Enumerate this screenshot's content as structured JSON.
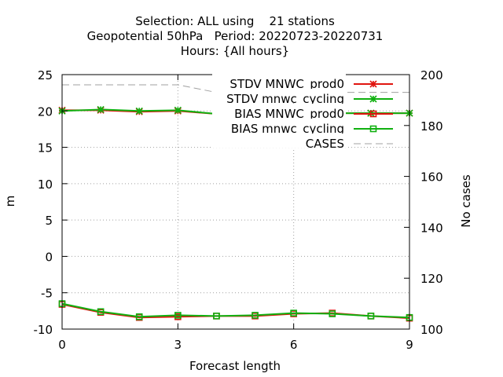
{
  "chart_data": {
    "type": "line",
    "title_lines": [
      "Selection: ALL using    21 stations",
      "Geopotential 50hPa   Period: 20220723-20220731",
      "Hours: {All hours}"
    ],
    "xlabel": "Forecast length",
    "ylabel": "m",
    "y2label": "No cases",
    "xlim": [
      0,
      9
    ],
    "ylim": [
      -10,
      25
    ],
    "y2lim": [
      100,
      200
    ],
    "xticks": [
      "0",
      "3",
      "6",
      "9"
    ],
    "yticks": [
      "-10",
      "-5",
      "0",
      "5",
      "10",
      "15",
      "20",
      "25"
    ],
    "y2ticks": [
      "100",
      "120",
      "140",
      "160",
      "180",
      "200"
    ],
    "grid": true,
    "legend_position": "top-right",
    "series": [
      {
        "name": "STDV MNWC_prod0",
        "color": "#e0150f",
        "marker": "star",
        "axis": "left",
        "x": [
          0,
          1,
          2,
          3,
          4,
          5,
          6,
          7,
          8,
          9
        ],
        "values": [
          20.1,
          20.1,
          19.9,
          20.0,
          19.6,
          19.6,
          19.7,
          19.7,
          19.7,
          19.7
        ]
      },
      {
        "name": "STDV mnwc_cycling",
        "color": "#10b010",
        "marker": "star",
        "axis": "left",
        "x": [
          0,
          1,
          2,
          3,
          4,
          5,
          6,
          7,
          8,
          9
        ],
        "values": [
          20.0,
          20.2,
          20.0,
          20.1,
          19.6,
          19.7,
          19.7,
          19.7,
          19.7,
          19.7
        ]
      },
      {
        "name": "BIAS MNWC_prod0",
        "color": "#e0150f",
        "marker": "square",
        "axis": "left",
        "x": [
          0,
          1,
          2,
          3,
          4,
          5,
          6,
          7,
          8,
          9
        ],
        "values": [
          -6.6,
          -7.7,
          -8.4,
          -8.3,
          -8.2,
          -8.2,
          -7.9,
          -7.8,
          -8.2,
          -8.5
        ]
      },
      {
        "name": "BIAS mnwc_cycling",
        "color": "#10b010",
        "marker": "square",
        "axis": "left",
        "x": [
          0,
          1,
          2,
          3,
          4,
          5,
          6,
          7,
          8,
          9
        ],
        "values": [
          -6.5,
          -7.6,
          -8.3,
          -8.1,
          -8.2,
          -8.1,
          -7.8,
          -7.9,
          -8.2,
          -8.4
        ]
      },
      {
        "name": "CASES",
        "color": "#a0a0a0",
        "marker": "none",
        "dashed": true,
        "axis": "right",
        "x": [
          0,
          1,
          2,
          3,
          4,
          5,
          6,
          7,
          8,
          9
        ],
        "values": [
          196,
          196,
          196,
          196,
          193,
          193,
          193,
          193,
          193,
          193
        ]
      }
    ]
  }
}
